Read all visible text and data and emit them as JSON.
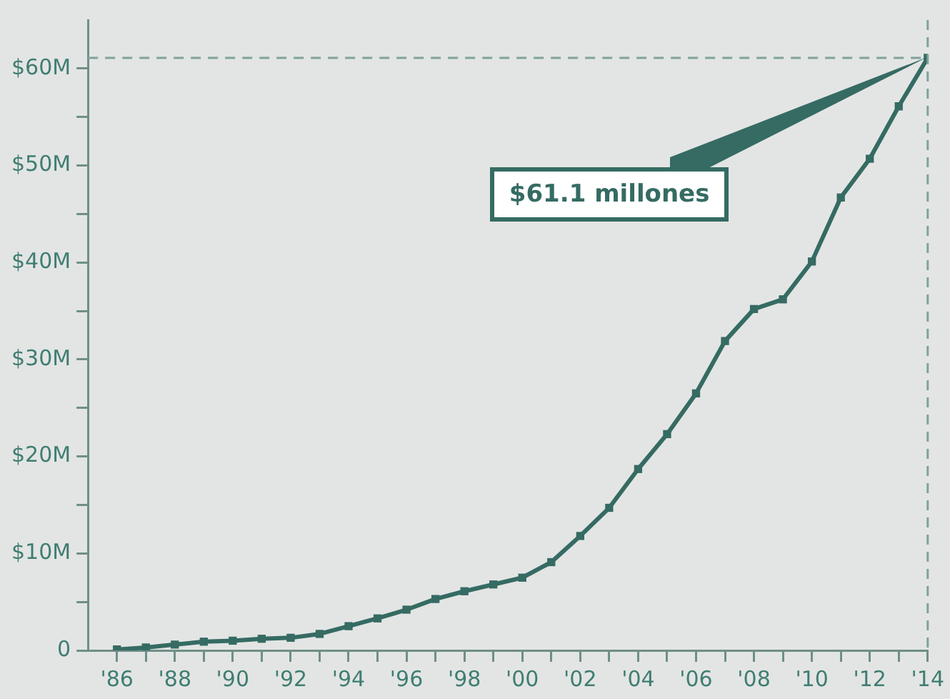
{
  "chart_data": {
    "type": "line",
    "x": [
      1986,
      1987,
      1988,
      1989,
      1990,
      1991,
      1992,
      1993,
      1994,
      1995,
      1996,
      1997,
      1998,
      1999,
      2000,
      2001,
      2002,
      2003,
      2004,
      2005,
      2006,
      2007,
      2008,
      2009,
      2010,
      2011,
      2012,
      2013,
      2014
    ],
    "series": [
      {
        "color": "#356b63",
        "values": [
          0.1,
          0.3,
          0.6,
          0.9,
          1.0,
          1.2,
          1.3,
          1.7,
          2.5,
          3.3,
          4.2,
          5.3,
          6.1,
          6.8,
          7.5,
          9.1,
          11.8,
          14.7,
          18.7,
          22.3,
          26.5,
          31.9,
          35.2,
          36.2,
          40.1,
          46.7,
          50.7,
          56.1,
          61.1
        ]
      }
    ],
    "xlim": [
      1985,
      2014
    ],
    "xticks": [
      {
        "value": 1986,
        "label": "'86"
      },
      {
        "value": 1987,
        "label": null
      },
      {
        "value": 1988,
        "label": "'88"
      },
      {
        "value": 1989,
        "label": null
      },
      {
        "value": 1990,
        "label": "'90"
      },
      {
        "value": 1991,
        "label": null
      },
      {
        "value": 1992,
        "label": "'92"
      },
      {
        "value": 1993,
        "label": null
      },
      {
        "value": 1994,
        "label": "'94"
      },
      {
        "value": 1995,
        "label": null
      },
      {
        "value": 1996,
        "label": "'96"
      },
      {
        "value": 1997,
        "label": null
      },
      {
        "value": 1998,
        "label": "'98"
      },
      {
        "value": 1999,
        "label": null
      },
      {
        "value": 2000,
        "label": "'00"
      },
      {
        "value": 2001,
        "label": null
      },
      {
        "value": 2002,
        "label": "'02"
      },
      {
        "value": 2003,
        "label": null
      },
      {
        "value": 2004,
        "label": "'04"
      },
      {
        "value": 2005,
        "label": null
      },
      {
        "value": 2006,
        "label": "'06"
      },
      {
        "value": 2007,
        "label": null
      },
      {
        "value": 2008,
        "label": "'08"
      },
      {
        "value": 2009,
        "label": null
      },
      {
        "value": 2010,
        "label": "'10"
      },
      {
        "value": 2011,
        "label": null
      },
      {
        "value": 2012,
        "label": "'12"
      },
      {
        "value": 2013,
        "label": null
      },
      {
        "value": 2014,
        "label": "'14"
      }
    ],
    "ylim": [
      0,
      65
    ],
    "yticks": [
      0,
      {
        "value": 5,
        "label": null
      },
      {
        "value": 10,
        "label": "$10M"
      },
      {
        "value": 15,
        "label": null
      },
      {
        "value": 20,
        "label": "$20M"
      },
      {
        "value": 25,
        "label": null
      },
      {
        "value": 30,
        "label": "$30M"
      },
      {
        "value": 35,
        "label": null
      },
      {
        "value": 40,
        "label": "$40M"
      },
      {
        "value": 45,
        "label": null
      },
      {
        "value": 50,
        "label": "$50M"
      },
      {
        "value": 55,
        "label": null
      },
      {
        "value": 60,
        "label": "$60M"
      }
    ],
    "ref_lines": [
      {
        "axis": "y",
        "value": 61.1,
        "color": "#7fa39b",
        "line_style": "dashed"
      },
      {
        "axis": "x",
        "value": 2014,
        "color": "#7fa39b",
        "line_style": "dashed"
      }
    ],
    "annotations": [
      {
        "text": "$61.1 millones",
        "x": 2014,
        "y": 61.1
      }
    ],
    "grid": false,
    "legend": false,
    "marker": "square",
    "line_style": "solid"
  }
}
